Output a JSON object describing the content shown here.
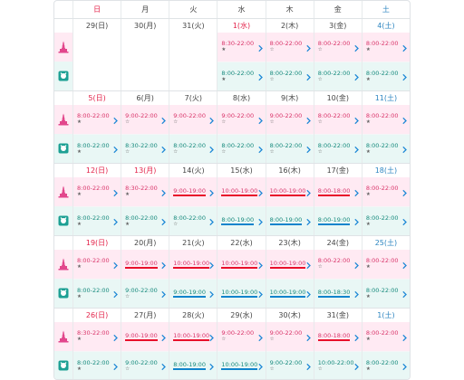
{
  "headers": [
    {
      "label": "日",
      "cls": "sun"
    },
    {
      "label": "月",
      "cls": ""
    },
    {
      "label": "火",
      "cls": ""
    },
    {
      "label": "水",
      "cls": ""
    },
    {
      "label": "木",
      "cls": ""
    },
    {
      "label": "金",
      "cls": ""
    },
    {
      "label": "土",
      "cls": "sat"
    }
  ],
  "colors": {
    "sea_pink": "#ffeaf3",
    "land_mint": "#e9f7f5",
    "red_underline": "#e8102b",
    "blue_underline": "#1184cc",
    "sun_red": "#e3234a",
    "sat_blue": "#2e86c1",
    "chevron": "#1e88d6"
  },
  "weeks": [
    {
      "days": [
        {
          "date": "29(日)",
          "color": "",
          "sea": null,
          "land": null
        },
        {
          "date": "30(月)",
          "color": "",
          "sea": null,
          "land": null
        },
        {
          "date": "31(火)",
          "color": "",
          "sea": null,
          "land": null
        },
        {
          "date": "1(水)",
          "color": "red",
          "sea": {
            "hours": "8:30-22:00",
            "mark": "★",
            "u": ""
          },
          "land": {
            "hours": "8:00-22:00",
            "mark": "★",
            "u": ""
          }
        },
        {
          "date": "2(木)",
          "color": "",
          "sea": {
            "hours": "8:00-22:00",
            "mark": "☆",
            "u": ""
          },
          "land": {
            "hours": "8:00-22:00",
            "mark": "☆",
            "u": ""
          }
        },
        {
          "date": "3(金)",
          "color": "",
          "sea": {
            "hours": "8:00-22:00",
            "mark": "☆",
            "u": ""
          },
          "land": {
            "hours": "8:00-22:00",
            "mark": "☆",
            "u": ""
          }
        },
        {
          "date": "4(土)",
          "color": "blue",
          "sea": {
            "hours": "8:00-22:00",
            "mark": "★",
            "u": ""
          },
          "land": {
            "hours": "8:00-22:00",
            "mark": "★",
            "u": ""
          }
        }
      ]
    },
    {
      "days": [
        {
          "date": "5(日)",
          "color": "red",
          "sea": {
            "hours": "8:00-22:00",
            "mark": "★",
            "u": ""
          },
          "land": {
            "hours": "8:00-22:00",
            "mark": "★",
            "u": ""
          }
        },
        {
          "date": "6(月)",
          "color": "",
          "sea": {
            "hours": "9:00-22:00",
            "mark": "☆",
            "u": ""
          },
          "land": {
            "hours": "8:30-22:00",
            "mark": "☆",
            "u": ""
          }
        },
        {
          "date": "7(火)",
          "color": "",
          "sea": {
            "hours": "9:00-22:00",
            "mark": "☆",
            "u": ""
          },
          "land": {
            "hours": "8:00-22:00",
            "mark": "☆",
            "u": ""
          }
        },
        {
          "date": "8(水)",
          "color": "",
          "sea": {
            "hours": "9:00-22:00",
            "mark": "☆",
            "u": ""
          },
          "land": {
            "hours": "8:00-22:00",
            "mark": "☆",
            "u": ""
          }
        },
        {
          "date": "9(木)",
          "color": "",
          "sea": {
            "hours": "9:00-22:00",
            "mark": "☆",
            "u": ""
          },
          "land": {
            "hours": "8:00-22:00",
            "mark": "☆",
            "u": ""
          }
        },
        {
          "date": "10(金)",
          "color": "",
          "sea": {
            "hours": "8:00-22:00",
            "mark": "☆",
            "u": ""
          },
          "land": {
            "hours": "8:00-22:00",
            "mark": "☆",
            "u": ""
          }
        },
        {
          "date": "11(土)",
          "color": "blue",
          "sea": {
            "hours": "8:00-22:00",
            "mark": "★",
            "u": ""
          },
          "land": {
            "hours": "8:00-22:00",
            "mark": "★",
            "u": ""
          }
        }
      ]
    },
    {
      "days": [
        {
          "date": "12(日)",
          "color": "red",
          "sea": {
            "hours": "8:00-22:00",
            "mark": "★",
            "u": ""
          },
          "land": {
            "hours": "8:00-22:00",
            "mark": "★",
            "u": ""
          }
        },
        {
          "date": "13(月)",
          "color": "red",
          "sea": {
            "hours": "8:30-22:00",
            "mark": "★",
            "u": ""
          },
          "land": {
            "hours": "8:00-22:00",
            "mark": "★",
            "u": ""
          }
        },
        {
          "date": "14(火)",
          "color": "",
          "sea": {
            "hours": "9:00-19:00",
            "mark": "",
            "u": "red"
          },
          "land": {
            "hours": "8:00-22:00",
            "mark": "☆",
            "u": ""
          }
        },
        {
          "date": "15(水)",
          "color": "",
          "sea": {
            "hours": "10:00-19:00",
            "mark": "",
            "u": "red"
          },
          "land": {
            "hours": "8:00-19:00",
            "mark": "",
            "u": "blue"
          }
        },
        {
          "date": "16(木)",
          "color": "",
          "sea": {
            "hours": "10:00-19:00",
            "mark": "",
            "u": "red"
          },
          "land": {
            "hours": "8:00-19:00",
            "mark": "",
            "u": "blue"
          }
        },
        {
          "date": "17(金)",
          "color": "",
          "sea": {
            "hours": "8:00-18:00",
            "mark": "",
            "u": "red"
          },
          "land": {
            "hours": "8:00-19:00",
            "mark": "",
            "u": "blue"
          }
        },
        {
          "date": "18(土)",
          "color": "blue",
          "sea": {
            "hours": "8:00-22:00",
            "mark": "★",
            "u": ""
          },
          "land": {
            "hours": "8:00-22:00",
            "mark": "★",
            "u": ""
          }
        }
      ]
    },
    {
      "days": [
        {
          "date": "19(日)",
          "color": "red",
          "sea": {
            "hours": "8:00-22:00",
            "mark": "★",
            "u": ""
          },
          "land": {
            "hours": "8:00-22:00",
            "mark": "★",
            "u": ""
          }
        },
        {
          "date": "20(月)",
          "color": "",
          "sea": {
            "hours": "9:00-19:00",
            "mark": "",
            "u": "red"
          },
          "land": {
            "hours": "9:00-22:00",
            "mark": "☆",
            "u": ""
          }
        },
        {
          "date": "21(火)",
          "color": "",
          "sea": {
            "hours": "10:00-19:00",
            "mark": "",
            "u": "red"
          },
          "land": {
            "hours": "9:00-19:00",
            "mark": "",
            "u": "blue"
          }
        },
        {
          "date": "22(水)",
          "color": "",
          "sea": {
            "hours": "10:00-19:00",
            "mark": "",
            "u": "red"
          },
          "land": {
            "hours": "10:00-19:00",
            "mark": "",
            "u": "blue"
          }
        },
        {
          "date": "23(木)",
          "color": "",
          "sea": {
            "hours": "10:00-19:00",
            "mark": "",
            "u": "red"
          },
          "land": {
            "hours": "10:00-19:00",
            "mark": "",
            "u": "blue"
          }
        },
        {
          "date": "24(金)",
          "color": "",
          "sea": {
            "hours": "8:00-22:00",
            "mark": "☆",
            "u": ""
          },
          "land": {
            "hours": "8:00-18:30",
            "mark": "",
            "u": "blue"
          }
        },
        {
          "date": "25(土)",
          "color": "blue",
          "sea": {
            "hours": "8:00-22:00",
            "mark": "★",
            "u": ""
          },
          "land": {
            "hours": "8:00-22:00",
            "mark": "★",
            "u": ""
          }
        }
      ]
    },
    {
      "days": [
        {
          "date": "26(日)",
          "color": "red",
          "sea": {
            "hours": "8:30-22:00",
            "mark": "★",
            "u": ""
          },
          "land": {
            "hours": "8:00-22:00",
            "mark": "★",
            "u": ""
          }
        },
        {
          "date": "27(月)",
          "color": "",
          "sea": {
            "hours": "9:00-19:00",
            "mark": "",
            "u": "red"
          },
          "land": {
            "hours": "9:00-22:00",
            "mark": "☆",
            "u": ""
          }
        },
        {
          "date": "28(火)",
          "color": "",
          "sea": {
            "hours": "10:00-19:00",
            "mark": "",
            "u": "red"
          },
          "land": {
            "hours": "8:00-19:00",
            "mark": "",
            "u": "blue"
          }
        },
        {
          "date": "29(水)",
          "color": "",
          "sea": {
            "hours": "9:00-22:00",
            "mark": "☆",
            "u": ""
          },
          "land": {
            "hours": "10:00-19:00",
            "mark": "",
            "u": "blue"
          }
        },
        {
          "date": "30(木)",
          "color": "",
          "sea": {
            "hours": "9:00-22:00",
            "mark": "☆",
            "u": ""
          },
          "land": {
            "hours": "9:00-22:00",
            "mark": "☆",
            "u": ""
          }
        },
        {
          "date": "31(金)",
          "color": "",
          "sea": {
            "hours": "8:00-18:00",
            "mark": "",
            "u": "red"
          },
          "land": {
            "hours": "10:00-22:00",
            "mark": "☆",
            "u": ""
          }
        },
        {
          "date": "1(土)",
          "color": "blue",
          "sea": {
            "hours": "8:00-22:00",
            "mark": "★",
            "u": ""
          },
          "land": {
            "hours": "8:00-22:00",
            "mark": "★",
            "u": ""
          }
        }
      ]
    }
  ]
}
